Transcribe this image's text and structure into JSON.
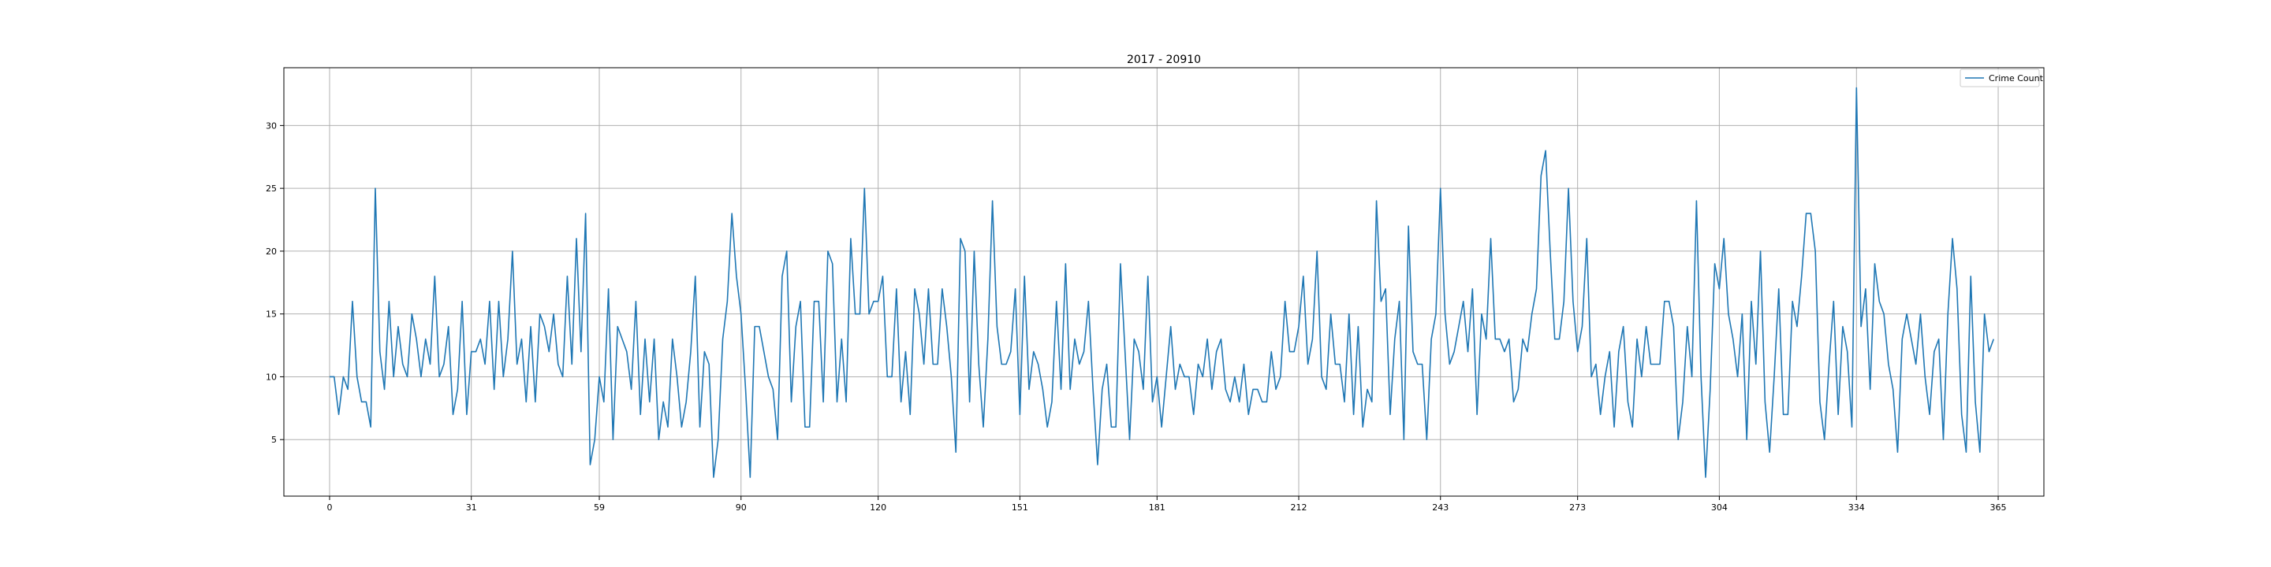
{
  "chart_data": {
    "type": "line",
    "title": "2017 - 20910",
    "xlabel": "",
    "ylabel": "",
    "xlim": [
      -10,
      375
    ],
    "ylim": [
      0.5,
      34.6
    ],
    "xticks": [
      0,
      31,
      59,
      90,
      120,
      151,
      181,
      212,
      243,
      273,
      304,
      334,
      365
    ],
    "yticks": [
      5,
      10,
      15,
      20,
      25,
      30
    ],
    "grid": true,
    "legend_position": "top-right",
    "series": [
      {
        "name": "Crime Count",
        "color": "#1f77b4",
        "x_start": 0,
        "x_step": 1,
        "values": [
          10,
          10,
          7,
          10,
          9,
          16,
          10,
          8,
          8,
          6,
          25,
          12,
          9,
          16,
          10,
          14,
          11,
          10,
          15,
          13,
          10,
          13,
          11,
          18,
          10,
          11,
          14,
          7,
          9,
          16,
          7,
          12,
          12,
          13,
          11,
          16,
          9,
          16,
          10,
          13,
          20,
          11,
          13,
          8,
          14,
          8,
          15,
          14,
          12,
          15,
          11,
          10,
          18,
          11,
          21,
          12,
          23,
          3,
          5,
          10,
          8,
          17,
          5,
          14,
          13,
          12,
          9,
          16,
          7,
          13,
          8,
          13,
          5,
          8,
          6,
          13,
          10,
          6,
          8,
          12,
          18,
          6,
          12,
          11,
          2,
          5,
          13,
          16,
          23,
          18,
          15,
          9,
          2,
          14,
          14,
          12,
          10,
          9,
          5,
          18,
          20,
          8,
          14,
          16,
          6,
          6,
          16,
          16,
          8,
          20,
          19,
          8,
          13,
          8,
          21,
          15,
          15,
          25,
          15,
          16,
          16,
          18,
          10,
          10,
          17,
          8,
          12,
          7,
          17,
          15,
          11,
          17,
          11,
          11,
          17,
          14,
          10,
          4,
          21,
          20,
          8,
          20,
          11,
          6,
          13,
          24,
          14,
          11,
          11,
          12,
          17,
          7,
          18,
          9,
          12,
          11,
          9,
          6,
          8,
          16,
          9,
          19,
          9,
          13,
          11,
          12,
          16,
          9,
          3,
          9,
          11,
          6,
          6,
          19,
          12,
          5,
          13,
          12,
          9,
          18,
          8,
          10,
          6,
          10,
          14,
          9,
          11,
          10,
          10,
          7,
          11,
          10,
          13,
          9,
          12,
          13,
          9,
          8,
          10,
          8,
          11,
          7,
          9,
          9,
          8,
          8,
          12,
          9,
          10,
          16,
          12,
          12,
          14,
          18,
          11,
          13,
          20,
          10,
          9,
          15,
          11,
          11,
          8,
          15,
          7,
          14,
          6,
          9,
          8,
          24,
          16,
          17,
          7,
          13,
          16,
          5,
          22,
          12,
          11,
          11,
          5,
          13,
          15,
          25,
          15,
          11,
          12,
          14,
          16,
          12,
          17,
          7,
          15,
          13,
          21,
          13,
          13,
          12,
          13,
          8,
          9,
          13,
          12,
          15,
          17,
          26,
          28,
          20,
          13,
          13,
          16,
          25,
          16,
          12,
          14,
          21,
          10,
          11,
          7,
          10,
          12,
          6,
          12,
          14,
          8,
          6,
          13,
          10,
          14,
          11,
          11,
          11,
          16,
          16,
          14,
          5,
          8,
          14,
          10,
          24,
          10,
          2,
          9,
          19,
          17,
          21,
          15,
          13,
          10,
          15,
          5,
          16,
          11,
          20,
          8,
          4,
          10,
          17,
          7,
          7,
          16,
          14,
          18,
          23,
          23,
          20,
          8,
          5,
          11,
          16,
          7,
          14,
          12,
          6,
          33,
          14,
          17,
          9,
          19,
          16,
          15,
          11,
          9,
          4,
          13,
          15,
          13,
          11,
          15,
          10,
          7,
          12,
          13,
          5,
          15,
          21,
          17,
          7,
          4,
          18,
          8,
          4,
          15,
          12,
          13
        ]
      }
    ]
  }
}
